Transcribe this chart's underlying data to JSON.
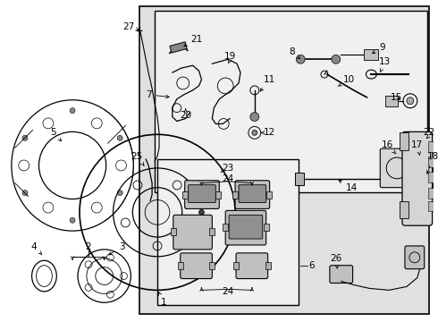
{
  "bg_color": "#ffffff",
  "shaded_color": "#d8d8d8",
  "white_color": "#ffffff",
  "line_color": "#000000",
  "fig_w": 4.9,
  "fig_h": 3.6,
  "dpi": 100,
  "label_fs": 7.5
}
